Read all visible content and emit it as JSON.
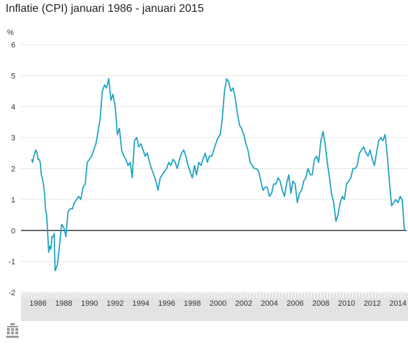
{
  "chart_data": {
    "type": "line",
    "title": "Inflatie (CPI) januari 1986 - januari 2015",
    "ylabel": "%",
    "xlabel": "",
    "ylim": [
      -2,
      6
    ],
    "xlim": [
      1985.17,
      2015.17
    ],
    "grid": true,
    "legend": "none",
    "yticks": [
      "6",
      "5",
      "4",
      "3",
      "2",
      "1",
      "0",
      "-1",
      "-2"
    ],
    "xticks": [
      "1986",
      "1988",
      "1990",
      "1992",
      "1994",
      "1996",
      "1998",
      "2000",
      "2002",
      "2004",
      "2006",
      "2008",
      "2010",
      "2012",
      "2014"
    ],
    "series": [
      {
        "x": [
          1986.0,
          1986.08,
          1986.17,
          1986.25,
          1986.33,
          1986.42,
          1986.5,
          1986.58,
          1986.67,
          1986.75,
          1986.83,
          1986.92,
          1987.0,
          1987.08,
          1987.17,
          1987.25,
          1987.33,
          1987.42,
          1987.5,
          1987.58,
          1987.67,
          1987.75,
          1987.83,
          1987.92,
          1988.0,
          1988.17,
          1988.33,
          1988.5,
          1988.67,
          1988.83,
          1989.0,
          1989.17,
          1989.33,
          1989.5,
          1989.67,
          1989.83,
          1990.0,
          1990.17,
          1990.33,
          1990.5,
          1990.67,
          1990.83,
          1991.0,
          1991.17,
          1991.33,
          1991.5,
          1991.67,
          1991.83,
          1992.0,
          1992.17,
          1992.33,
          1992.5,
          1992.67,
          1992.83,
          1993.0,
          1993.17,
          1993.33,
          1993.5,
          1993.67,
          1993.83,
          1994.0,
          1994.17,
          1994.33,
          1994.5,
          1994.67,
          1994.83,
          1995.0,
          1995.17,
          1995.33,
          1995.5,
          1995.67,
          1995.83,
          1996.0,
          1996.17,
          1996.33,
          1996.5,
          1996.67,
          1996.83,
          1997.0,
          1997.17,
          1997.33,
          1997.5,
          1997.67,
          1997.83,
          1998.0,
          1998.17,
          1998.33,
          1998.5,
          1998.67,
          1998.83,
          1999.0,
          1999.17,
          1999.33,
          1999.5,
          1999.67,
          1999.83,
          2000.0,
          2000.17,
          2000.33,
          2000.5,
          2000.67,
          2000.83,
          2001.0,
          2001.17,
          2001.33,
          2001.5,
          2001.67,
          2001.83,
          2002.0,
          2002.17,
          2002.33,
          2002.5,
          2002.67,
          2002.83,
          2003.0,
          2003.17,
          2003.33,
          2003.5,
          2003.67,
          2003.83,
          2004.0,
          2004.17,
          2004.33,
          2004.5,
          2004.67,
          2004.83,
          2005.0,
          2005.17,
          2005.33,
          2005.5,
          2005.67,
          2005.83,
          2006.0,
          2006.17,
          2006.33,
          2006.5,
          2006.67,
          2006.83,
          2007.0,
          2007.17,
          2007.33,
          2007.5,
          2007.67,
          2007.83,
          2008.0,
          2008.17,
          2008.33,
          2008.5,
          2008.67,
          2008.83,
          2009.0,
          2009.17,
          2009.33,
          2009.5,
          2009.67,
          2009.83,
          2010.0,
          2010.17,
          2010.33,
          2010.5,
          2010.67,
          2010.83,
          2011.0,
          2011.17,
          2011.33,
          2011.5,
          2011.67,
          2011.83,
          2012.0,
          2012.17,
          2012.33,
          2012.5,
          2012.67,
          2012.83,
          2013.0,
          2013.17,
          2013.33,
          2013.5,
          2013.67,
          2013.83,
          2014.0,
          2014.17,
          2014.33,
          2014.5,
          2014.67,
          2014.83,
          2015.0
        ],
        "values": [
          2.3,
          2.2,
          2.4,
          2.5,
          2.6,
          2.5,
          2.3,
          2.3,
          2.2,
          1.8,
          1.7,
          1.5,
          1.2,
          0.7,
          0.5,
          -0.1,
          -0.7,
          -0.5,
          -0.6,
          -0.2,
          -0.2,
          -0.1,
          -1.3,
          -1.2,
          -1.1,
          -0.5,
          0.2,
          0.1,
          -0.2,
          0.6,
          0.7,
          0.7,
          0.9,
          1.0,
          1.1,
          1.0,
          1.4,
          1.5,
          2.2,
          2.3,
          2.4,
          2.6,
          2.8,
          3.2,
          3.6,
          4.5,
          4.7,
          4.6,
          4.9,
          4.2,
          4.4,
          4.0,
          3.1,
          3.3,
          2.6,
          2.4,
          2.3,
          2.1,
          2.2,
          1.7,
          2.9,
          3.0,
          2.7,
          2.8,
          2.6,
          2.4,
          2.5,
          2.2,
          2.0,
          1.8,
          1.6,
          1.3,
          1.7,
          1.8,
          1.9,
          2.0,
          2.2,
          2.1,
          2.3,
          2.2,
          2.0,
          2.3,
          2.5,
          2.6,
          2.4,
          2.1,
          1.9,
          1.7,
          2.1,
          1.8,
          2.2,
          2.1,
          2.3,
          2.5,
          2.2,
          2.4,
          2.4,
          2.6,
          2.8,
          3.0,
          3.1,
          3.6,
          4.5,
          4.9,
          4.8,
          4.5,
          4.6,
          4.3,
          3.8,
          3.4,
          3.3,
          3.1,
          2.8,
          2.6,
          2.2,
          2.1,
          2.0,
          2.0,
          1.9,
          1.6,
          1.3,
          1.4,
          1.4,
          1.1,
          1.2,
          1.5,
          1.5,
          1.7,
          1.6,
          1.3,
          1.1,
          1.5,
          1.8,
          1.2,
          1.6,
          1.5,
          0.9,
          1.2,
          1.3,
          1.6,
          1.7,
          2.0,
          1.8,
          1.8,
          2.3,
          2.4,
          2.2,
          2.9,
          3.2,
          2.8,
          2.2,
          1.7,
          1.2,
          0.9,
          0.3,
          0.5,
          0.9,
          1.1,
          1.0,
          1.5,
          1.6,
          1.7,
          2.0,
          2.0,
          2.1,
          2.5,
          2.6,
          2.7,
          2.5,
          2.4,
          2.6,
          2.3,
          2.1,
          2.5,
          2.9,
          3.0,
          2.9,
          3.1,
          2.4,
          1.6,
          0.8,
          0.9,
          1.0,
          0.9,
          1.1,
          1.0,
          0.0
        ]
      }
    ]
  },
  "colors": {
    "line": "#1fa3c2",
    "zero_line": "#111111",
    "grid": "#e6e6e6",
    "axis_text": "#333333",
    "x_axis_band": "#e3e3e3"
  }
}
